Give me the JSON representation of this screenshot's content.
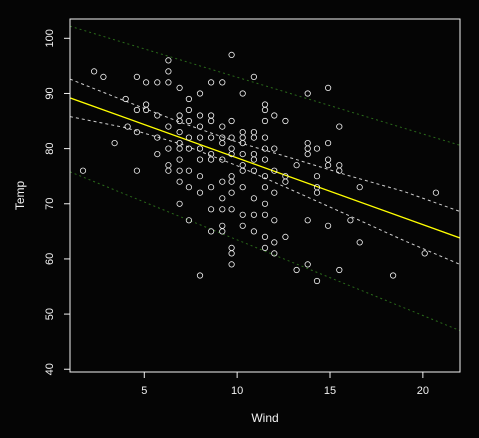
{
  "chart_data": {
    "type": "scatter",
    "xlabel": "Wind",
    "ylabel": "Temp",
    "xlim": [
      1.0,
      22.0
    ],
    "ylim": [
      39.5,
      103.5
    ],
    "xticks": [
      5,
      10,
      15,
      20
    ],
    "yticks": [
      40,
      50,
      60,
      70,
      80,
      90,
      100
    ],
    "grid": false,
    "points": [
      {
        "x": 1.7,
        "y": 76
      },
      {
        "x": 2.3,
        "y": 94
      },
      {
        "x": 2.8,
        "y": 93
      },
      {
        "x": 3.4,
        "y": 81
      },
      {
        "x": 4.0,
        "y": 89
      },
      {
        "x": 4.1,
        "y": 84
      },
      {
        "x": 4.6,
        "y": 93
      },
      {
        "x": 4.6,
        "y": 87
      },
      {
        "x": 4.6,
        "y": 83
      },
      {
        "x": 4.6,
        "y": 76
      },
      {
        "x": 5.1,
        "y": 92
      },
      {
        "x": 5.1,
        "y": 88
      },
      {
        "x": 5.1,
        "y": 87
      },
      {
        "x": 5.7,
        "y": 92
      },
      {
        "x": 5.7,
        "y": 86
      },
      {
        "x": 5.7,
        "y": 82
      },
      {
        "x": 5.7,
        "y": 79
      },
      {
        "x": 6.3,
        "y": 96
      },
      {
        "x": 6.3,
        "y": 94
      },
      {
        "x": 6.3,
        "y": 92
      },
      {
        "x": 6.3,
        "y": 84
      },
      {
        "x": 6.3,
        "y": 80
      },
      {
        "x": 6.3,
        "y": 77
      },
      {
        "x": 6.3,
        "y": 76
      },
      {
        "x": 6.9,
        "y": 91
      },
      {
        "x": 6.9,
        "y": 86
      },
      {
        "x": 6.9,
        "y": 85
      },
      {
        "x": 6.9,
        "y": 83
      },
      {
        "x": 6.9,
        "y": 81
      },
      {
        "x": 6.9,
        "y": 80
      },
      {
        "x": 6.9,
        "y": 78
      },
      {
        "x": 6.9,
        "y": 76
      },
      {
        "x": 6.9,
        "y": 74
      },
      {
        "x": 6.9,
        "y": 70
      },
      {
        "x": 7.4,
        "y": 89
      },
      {
        "x": 7.4,
        "y": 87
      },
      {
        "x": 7.4,
        "y": 85
      },
      {
        "x": 7.4,
        "y": 82
      },
      {
        "x": 7.4,
        "y": 80
      },
      {
        "x": 7.4,
        "y": 76
      },
      {
        "x": 7.4,
        "y": 73
      },
      {
        "x": 7.4,
        "y": 67
      },
      {
        "x": 8.0,
        "y": 90
      },
      {
        "x": 8.0,
        "y": 86
      },
      {
        "x": 8.0,
        "y": 84
      },
      {
        "x": 8.0,
        "y": 82
      },
      {
        "x": 8.0,
        "y": 80
      },
      {
        "x": 8.0,
        "y": 78
      },
      {
        "x": 8.0,
        "y": 75
      },
      {
        "x": 8.0,
        "y": 72
      },
      {
        "x": 8.0,
        "y": 57
      },
      {
        "x": 8.6,
        "y": 92
      },
      {
        "x": 8.6,
        "y": 86
      },
      {
        "x": 8.6,
        "y": 85
      },
      {
        "x": 8.6,
        "y": 82
      },
      {
        "x": 8.6,
        "y": 79
      },
      {
        "x": 8.6,
        "y": 78
      },
      {
        "x": 8.6,
        "y": 73
      },
      {
        "x": 8.6,
        "y": 69
      },
      {
        "x": 8.6,
        "y": 65
      },
      {
        "x": 9.2,
        "y": 92
      },
      {
        "x": 9.2,
        "y": 84
      },
      {
        "x": 9.2,
        "y": 82
      },
      {
        "x": 9.2,
        "y": 81
      },
      {
        "x": 9.2,
        "y": 78
      },
      {
        "x": 9.2,
        "y": 74
      },
      {
        "x": 9.2,
        "y": 71
      },
      {
        "x": 9.2,
        "y": 69
      },
      {
        "x": 9.2,
        "y": 66
      },
      {
        "x": 9.2,
        "y": 65
      },
      {
        "x": 9.7,
        "y": 97
      },
      {
        "x": 9.7,
        "y": 85
      },
      {
        "x": 9.7,
        "y": 82
      },
      {
        "x": 9.7,
        "y": 80
      },
      {
        "x": 9.7,
        "y": 79
      },
      {
        "x": 9.7,
        "y": 75
      },
      {
        "x": 9.7,
        "y": 74
      },
      {
        "x": 9.7,
        "y": 72
      },
      {
        "x": 9.7,
        "y": 69
      },
      {
        "x": 9.7,
        "y": 62
      },
      {
        "x": 9.7,
        "y": 61
      },
      {
        "x": 9.7,
        "y": 59
      },
      {
        "x": 10.3,
        "y": 90
      },
      {
        "x": 10.3,
        "y": 83
      },
      {
        "x": 10.3,
        "y": 82
      },
      {
        "x": 10.3,
        "y": 81
      },
      {
        "x": 10.3,
        "y": 79
      },
      {
        "x": 10.3,
        "y": 77
      },
      {
        "x": 10.3,
        "y": 76
      },
      {
        "x": 10.3,
        "y": 73
      },
      {
        "x": 10.3,
        "y": 68
      },
      {
        "x": 10.3,
        "y": 66
      },
      {
        "x": 10.9,
        "y": 93
      },
      {
        "x": 10.9,
        "y": 83
      },
      {
        "x": 10.9,
        "y": 82
      },
      {
        "x": 10.9,
        "y": 79
      },
      {
        "x": 10.9,
        "y": 78
      },
      {
        "x": 10.9,
        "y": 76
      },
      {
        "x": 10.9,
        "y": 71
      },
      {
        "x": 10.9,
        "y": 68
      },
      {
        "x": 10.9,
        "y": 65
      },
      {
        "x": 11.5,
        "y": 88
      },
      {
        "x": 11.5,
        "y": 87
      },
      {
        "x": 11.5,
        "y": 85
      },
      {
        "x": 11.5,
        "y": 82
      },
      {
        "x": 11.5,
        "y": 80
      },
      {
        "x": 11.5,
        "y": 78
      },
      {
        "x": 11.5,
        "y": 75
      },
      {
        "x": 11.5,
        "y": 73
      },
      {
        "x": 11.5,
        "y": 70
      },
      {
        "x": 11.5,
        "y": 68
      },
      {
        "x": 11.5,
        "y": 64
      },
      {
        "x": 11.5,
        "y": 62
      },
      {
        "x": 12.0,
        "y": 86
      },
      {
        "x": 12.0,
        "y": 80
      },
      {
        "x": 12.0,
        "y": 76
      },
      {
        "x": 12.0,
        "y": 72
      },
      {
        "x": 12.0,
        "y": 67
      },
      {
        "x": 12.0,
        "y": 63
      },
      {
        "x": 12.0,
        "y": 61
      },
      {
        "x": 12.6,
        "y": 85
      },
      {
        "x": 12.6,
        "y": 75
      },
      {
        "x": 12.6,
        "y": 74
      },
      {
        "x": 12.6,
        "y": 64
      },
      {
        "x": 13.2,
        "y": 77
      },
      {
        "x": 13.2,
        "y": 58
      },
      {
        "x": 13.8,
        "y": 90
      },
      {
        "x": 13.8,
        "y": 81
      },
      {
        "x": 13.8,
        "y": 80
      },
      {
        "x": 13.8,
        "y": 79
      },
      {
        "x": 13.8,
        "y": 67
      },
      {
        "x": 13.8,
        "y": 59
      },
      {
        "x": 14.3,
        "y": 80
      },
      {
        "x": 14.3,
        "y": 75
      },
      {
        "x": 14.3,
        "y": 73
      },
      {
        "x": 14.3,
        "y": 72
      },
      {
        "x": 14.3,
        "y": 56
      },
      {
        "x": 14.9,
        "y": 91
      },
      {
        "x": 14.9,
        "y": 81
      },
      {
        "x": 14.9,
        "y": 78
      },
      {
        "x": 14.9,
        "y": 77
      },
      {
        "x": 14.9,
        "y": 66
      },
      {
        "x": 15.5,
        "y": 84
      },
      {
        "x": 15.5,
        "y": 77
      },
      {
        "x": 15.5,
        "y": 76
      },
      {
        "x": 15.5,
        "y": 58
      },
      {
        "x": 16.1,
        "y": 67
      },
      {
        "x": 16.6,
        "y": 73
      },
      {
        "x": 16.6,
        "y": 63
      },
      {
        "x": 18.4,
        "y": 57
      },
      {
        "x": 20.1,
        "y": 61
      },
      {
        "x": 20.7,
        "y": 72
      }
    ],
    "fit_line": {
      "x": [
        1.0,
        22.0
      ],
      "y": [
        89.2,
        63.8
      ],
      "color": "#ffff00"
    },
    "confidence_band": {
      "x": [
        1.0,
        4.0,
        7.0,
        10.0,
        13.0,
        16.0,
        19.0,
        22.0
      ],
      "upper": [
        92.6,
        88.6,
        84.7,
        81.2,
        78.2,
        75.1,
        72.2,
        68.6
      ],
      "lower": [
        85.8,
        83.8,
        80.8,
        76.9,
        72.4,
        67.9,
        63.3,
        59.0
      ],
      "color": "#d0d0d0"
    },
    "prediction_band": {
      "x": [
        1.0,
        22.0
      ],
      "upper": [
        102.2,
        80.6
      ],
      "lower": [
        75.8,
        47.0
      ],
      "color": "#2a6a1a"
    },
    "colors": {
      "background": "#050505",
      "axis": "#f2f2f2",
      "points": "#f2f2f2"
    }
  }
}
